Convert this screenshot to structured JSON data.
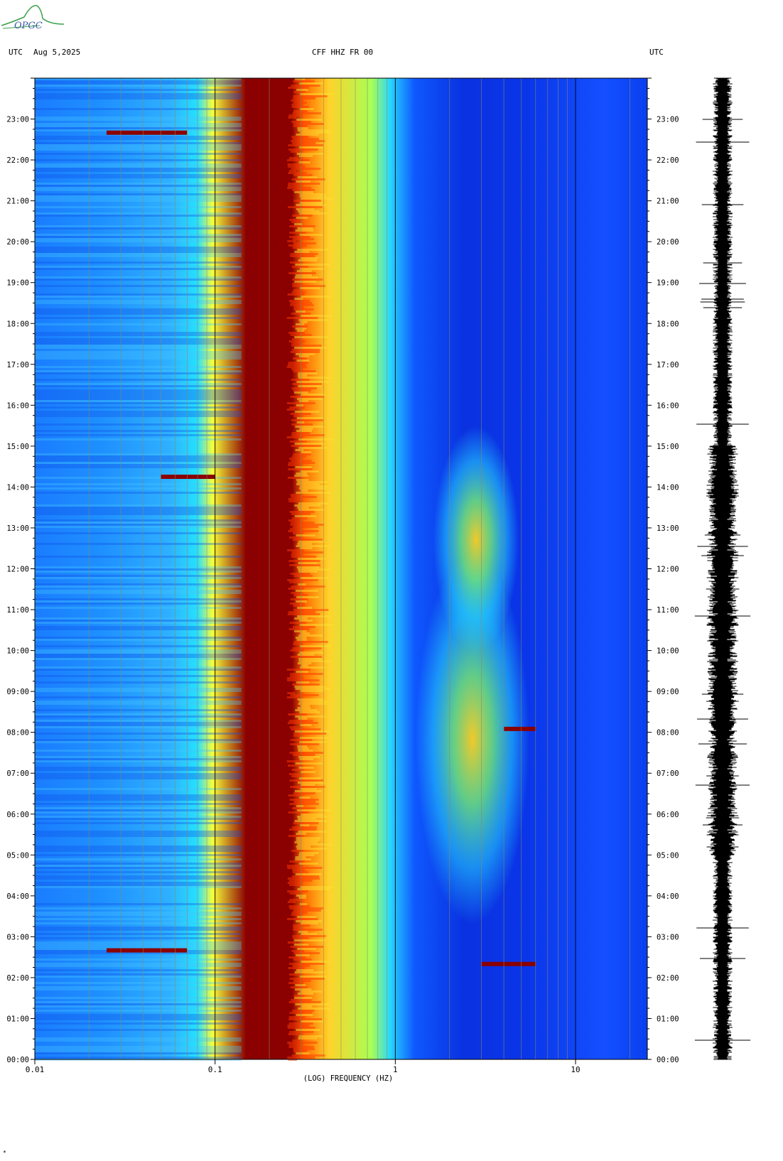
{
  "header": {
    "left_tz": "UTC",
    "date": "Aug 5,2025",
    "station": "CFF HHZ FR 00",
    "right_tz": "UTC"
  },
  "logo": {
    "text": "OPGC",
    "color": "#3aa04a"
  },
  "footer_mark": "*",
  "chart_data": {
    "type": "heatmap",
    "title": "CFF HHZ FR 00",
    "xlabel": "(LOG) FREQUENCY (HZ)",
    "ylabel": "UTC",
    "x_scale": "log",
    "xlim": [
      0.01,
      25
    ],
    "ylim_hours": [
      0,
      24
    ],
    "x_ticks": [
      {
        "value": 0.01,
        "label": "0.01"
      },
      {
        "value": 0.1,
        "label": "0.1"
      },
      {
        "value": 1,
        "label": "1"
      },
      {
        "value": 10,
        "label": "10"
      }
    ],
    "y_ticks": [
      "00:00",
      "01:00",
      "02:00",
      "03:00",
      "04:00",
      "05:00",
      "06:00",
      "07:00",
      "08:00",
      "09:00",
      "10:00",
      "11:00",
      "12:00",
      "13:00",
      "14:00",
      "15:00",
      "16:00",
      "17:00",
      "18:00",
      "19:00",
      "20:00",
      "21:00",
      "22:00",
      "23:00"
    ],
    "colormap": [
      "#00008b",
      "#0050ff",
      "#00c8ff",
      "#ffff30",
      "#ff6000",
      "#8b0000"
    ],
    "gridlines": "vertical log grid",
    "side_trace": "seismogram (24 h)",
    "notable_bands_hz": [
      {
        "from": 0.15,
        "to": 0.25,
        "level": "very high",
        "desc": "microseism peak"
      },
      {
        "from": 2,
        "to": 5,
        "level": "high",
        "desc": "daytime/night noise 05:00-15:00"
      }
    ],
    "events_utc": [
      {
        "time": "22:40",
        "freq_from": 0.025,
        "freq_to": 0.07
      },
      {
        "time": "14:15",
        "freq_from": 0.05,
        "freq_to": 0.1
      },
      {
        "time": "08:05",
        "freq_from": 4,
        "freq_to": 6
      },
      {
        "time": "02:40",
        "freq_from": 0.025,
        "freq_to": 0.07
      },
      {
        "time": "02:20",
        "freq_from": 3,
        "freq_to": 6
      }
    ]
  }
}
